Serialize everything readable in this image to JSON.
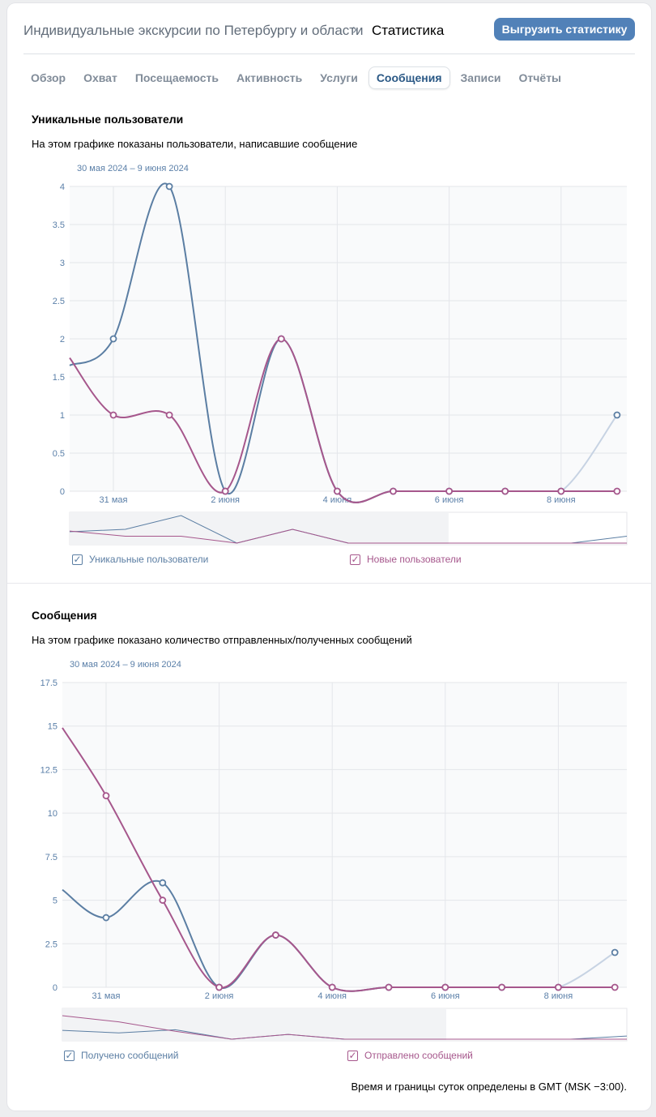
{
  "header": {
    "breadcrumb_parent": "Индивидуальные экскурсии по Петербургу и области",
    "breadcrumb_current": "Статистика",
    "export_button": "Выгрузить статистику"
  },
  "tabs": [
    {
      "label": "Обзор",
      "active": false
    },
    {
      "label": "Охват",
      "active": false
    },
    {
      "label": "Посещаемость",
      "active": false
    },
    {
      "label": "Активность",
      "active": false
    },
    {
      "label": "Услуги",
      "active": false
    },
    {
      "label": "Сообщения",
      "active": true
    },
    {
      "label": "Записи",
      "active": false
    },
    {
      "label": "Отчёты",
      "active": false
    }
  ],
  "sections": [
    {
      "title": "Уникальные пользователи",
      "description": "На этом графике показаны пользователи, написавшие сообщение",
      "period": "30 мая 2024 – 9 июня 2024"
    },
    {
      "title": "Сообщения",
      "description": "На этом графике показано количество отправленных/полученных сообщений",
      "period": "30 мая 2024 – 9 июня 2024"
    }
  ],
  "chart_data": [
    {
      "type": "line",
      "x": [
        "31 мая",
        "1 июня",
        "2 июня",
        "3 июня",
        "4 июня",
        "5 июня",
        "6 июня",
        "7 июня",
        "8 июня",
        "9 июня"
      ],
      "x_tick_labels": [
        "31 мая",
        "2 июня",
        "4 июня",
        "6 июня",
        "8 июня"
      ],
      "y_ticks": [
        "0",
        "0.5",
        "1",
        "1.5",
        "2",
        "2.5",
        "3",
        "3.5",
        "4"
      ],
      "ylim": [
        0,
        4
      ],
      "grid": true,
      "legend_position": "bottom",
      "series": [
        {
          "name": "Уникальные пользователи",
          "color": "#5b7ea3",
          "start_value": 1.65,
          "values": [
            2,
            4,
            0,
            2,
            0,
            0,
            0,
            0,
            0,
            1
          ]
        },
        {
          "name": "Новые пользователи",
          "color": "#a6578c",
          "start_value": 1.75,
          "values": [
            1,
            1,
            0,
            2,
            0,
            0,
            0,
            0,
            0,
            0
          ]
        }
      ]
    },
    {
      "type": "line",
      "x": [
        "31 мая",
        "1 июня",
        "2 июня",
        "3 июня",
        "4 июня",
        "5 июня",
        "6 июня",
        "7 июня",
        "8 июня",
        "9 июня"
      ],
      "x_tick_labels": [
        "31 мая",
        "2 июня",
        "4 июня",
        "6 июня",
        "8 июня"
      ],
      "y_ticks": [
        "0",
        "2.5",
        "5",
        "7.5",
        "10",
        "12.5",
        "15",
        "17.5"
      ],
      "ylim": [
        0,
        17.5
      ],
      "grid": true,
      "legend_position": "bottom",
      "series": [
        {
          "name": "Получено сообщений",
          "color": "#5b7ea3",
          "start_value": 5.6,
          "values": [
            4,
            6,
            0,
            3,
            0,
            0,
            0,
            0,
            0,
            2
          ]
        },
        {
          "name": "Отправлено сообщений",
          "color": "#a6578c",
          "start_value": 14.9,
          "values": [
            11,
            5,
            0,
            3,
            0,
            0,
            0,
            0,
            0,
            0
          ]
        }
      ]
    }
  ],
  "footnote": "Время и границы суток определены в GMT (MSK −3:00)."
}
